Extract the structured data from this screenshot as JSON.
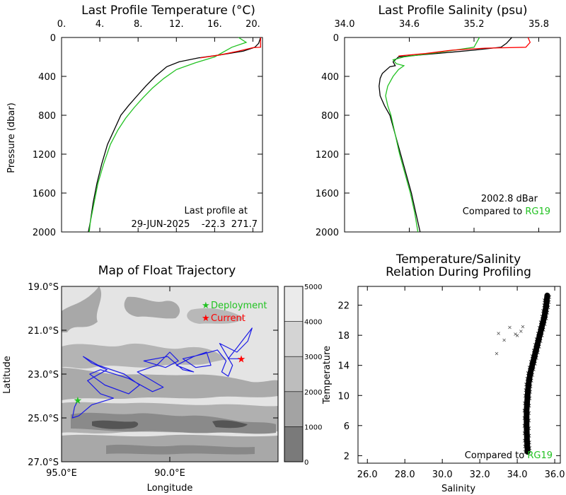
{
  "chart_data": [
    {
      "id": "temp-profile",
      "type": "line",
      "title": "Last Profile Temperature (°C)",
      "xlabel": "",
      "ylabel": "Pressure (dbar)",
      "xlim": [
        0,
        21
      ],
      "ylim": [
        2000,
        0
      ],
      "x_ticks": [
        0,
        4,
        8,
        12,
        16,
        20
      ],
      "x_tick_labels": [
        "0.",
        "4.",
        "8.",
        "12.",
        "16.",
        "20."
      ],
      "y_ticks": [
        0,
        400,
        800,
        1200,
        1600,
        2000
      ],
      "annotation_lines": [
        "Last profile at",
        "29-JUN-2025    -22.3  271.7"
      ],
      "series": [
        {
          "color": "#000000",
          "points": [
            [
              20.8,
              0
            ],
            [
              20.6,
              60
            ],
            [
              20.2,
              100
            ],
            [
              19.0,
              140
            ],
            [
              16.5,
              180
            ],
            [
              14.3,
              210
            ],
            [
              12.3,
              250
            ],
            [
              11.0,
              300
            ],
            [
              9.8,
              400
            ],
            [
              8.8,
              500
            ],
            [
              7.9,
              600
            ],
            [
              7.0,
              700
            ],
            [
              6.2,
              800
            ],
            [
              5.5,
              950
            ],
            [
              4.8,
              1100
            ],
            [
              4.2,
              1300
            ],
            [
              3.7,
              1500
            ],
            [
              3.3,
              1700
            ],
            [
              3.0,
              1900
            ],
            [
              2.8,
              2000
            ]
          ]
        },
        {
          "color": "#22c222",
          "points": [
            [
              18.5,
              0
            ],
            [
              19.3,
              50
            ],
            [
              17.8,
              100
            ],
            [
              16.0,
              200
            ],
            [
              14.0,
              260
            ],
            [
              12.0,
              330
            ],
            [
              10.7,
              420
            ],
            [
              9.5,
              520
            ],
            [
              8.5,
              620
            ],
            [
              7.6,
              720
            ],
            [
              6.7,
              830
            ],
            [
              5.9,
              950
            ],
            [
              5.1,
              1100
            ],
            [
              4.4,
              1300
            ],
            [
              3.8,
              1500
            ],
            [
              3.4,
              1700
            ],
            [
              3.0,
              1900
            ],
            [
              2.9,
              2000
            ]
          ]
        },
        {
          "color": "#ff0000",
          "points": [
            [
              20.8,
              0
            ],
            [
              20.8,
              100
            ],
            [
              20.0,
              105
            ],
            [
              18.5,
              140
            ],
            [
              16.5,
              180
            ],
            [
              14.5,
              210
            ]
          ]
        }
      ]
    },
    {
      "id": "salinity-profile",
      "type": "line",
      "title": "Last Profile Salinity (psu)",
      "xlim": [
        34.0,
        36.0
      ],
      "ylim": [
        2000,
        0
      ],
      "x_ticks": [
        34.0,
        34.6,
        35.2,
        35.8
      ],
      "x_tick_labels": [
        "34.0",
        "34.6",
        "35.2",
        "35.8"
      ],
      "y_ticks": [
        0,
        400,
        800,
        1200,
        1600,
        2000
      ],
      "annotation_lines": [
        "2002.8 dBar",
        "Compared to "
      ],
      "annotation_highlight": "RG19",
      "series": [
        {
          "color": "#000000",
          "points": [
            [
              35.55,
              0
            ],
            [
              35.5,
              60
            ],
            [
              35.45,
              100
            ],
            [
              35.2,
              130
            ],
            [
              34.8,
              170
            ],
            [
              34.5,
              200
            ],
            [
              34.45,
              250
            ],
            [
              34.47,
              290
            ],
            [
              34.42,
              300
            ],
            [
              34.35,
              370
            ],
            [
              34.33,
              420
            ],
            [
              34.32,
              500
            ],
            [
              34.33,
              600
            ],
            [
              34.37,
              700
            ],
            [
              34.42,
              800
            ],
            [
              34.47,
              1000
            ],
            [
              34.52,
              1200
            ],
            [
              34.57,
              1400
            ],
            [
              34.62,
              1600
            ],
            [
              34.66,
              1800
            ],
            [
              34.7,
              2000
            ]
          ]
        },
        {
          "color": "#22c222",
          "points": [
            [
              35.25,
              0
            ],
            [
              35.2,
              100
            ],
            [
              34.9,
              150
            ],
            [
              34.55,
              200
            ],
            [
              34.45,
              230
            ],
            [
              34.48,
              270
            ],
            [
              34.55,
              290
            ],
            [
              34.5,
              330
            ],
            [
              34.45,
              400
            ],
            [
              34.4,
              500
            ],
            [
              34.38,
              600
            ],
            [
              34.4,
              700
            ],
            [
              34.43,
              800
            ],
            [
              34.47,
              1000
            ],
            [
              34.51,
              1200
            ],
            [
              34.56,
              1400
            ],
            [
              34.61,
              1600
            ],
            [
              34.65,
              1800
            ],
            [
              34.68,
              2000
            ]
          ]
        },
        {
          "color": "#ff0000",
          "points": [
            [
              35.7,
              0
            ],
            [
              35.72,
              50
            ],
            [
              35.68,
              100
            ],
            [
              35.3,
              110
            ],
            [
              35.0,
              130
            ],
            [
              34.75,
              165
            ],
            [
              34.5,
              190
            ]
          ]
        }
      ]
    },
    {
      "id": "trajectory-map",
      "type": "map",
      "title": "Map of Float Trajectory",
      "xlabel": "Longitude",
      "ylabel": "Latitude",
      "lon_range": [
        95.0,
        85.0
      ],
      "lat_range": [
        -19.0,
        -27.0
      ],
      "x_ticks": [
        95,
        90
      ],
      "x_tick_labels": [
        "95.0°E",
        "90.0°E"
      ],
      "y_ticks": [
        -19,
        -21,
        -23,
        -25,
        -27
      ],
      "y_tick_labels": [
        "19.0°S",
        "21.0°S",
        "23.0°S",
        "25.0°S",
        "27.0°S"
      ],
      "legend": [
        {
          "label": "Deployment",
          "color": "#22c222",
          "marker": "star"
        },
        {
          "label": "Current",
          "color": "#ff0000",
          "marker": "star"
        }
      ],
      "colorbar_ticks": [
        5000,
        4000,
        3000,
        2000,
        1000,
        0
      ],
      "deployment": [
        94.25,
        -24.2
      ],
      "current": [
        86.7,
        -22.3
      ],
      "track_color": "#1a1ae6",
      "track": [
        [
          94.25,
          -24.2
        ],
        [
          94.4,
          -24.5
        ],
        [
          94.5,
          -25.0
        ],
        [
          94.2,
          -24.9
        ],
        [
          93.6,
          -24.4
        ],
        [
          92.6,
          -24.1
        ],
        [
          93.2,
          -23.9
        ],
        [
          93.8,
          -23.3
        ],
        [
          92.9,
          -22.8
        ],
        [
          93.6,
          -22.5
        ],
        [
          94.0,
          -22.2
        ],
        [
          93.3,
          -22.6
        ],
        [
          92.1,
          -23.0
        ],
        [
          91.4,
          -23.5
        ],
        [
          91.9,
          -23.9
        ],
        [
          93.0,
          -23.5
        ],
        [
          93.7,
          -23.0
        ],
        [
          93.2,
          -22.8
        ],
        [
          91.9,
          -23.2
        ],
        [
          90.8,
          -23.8
        ],
        [
          90.3,
          -23.6
        ],
        [
          91.5,
          -22.9
        ],
        [
          90.6,
          -22.6
        ],
        [
          90.0,
          -22.0
        ],
        [
          89.6,
          -22.4
        ],
        [
          90.2,
          -22.7
        ],
        [
          91.2,
          -22.4
        ],
        [
          90.1,
          -22.2
        ],
        [
          89.4,
          -22.8
        ],
        [
          88.9,
          -22.9
        ],
        [
          89.7,
          -22.6
        ],
        [
          88.9,
          -22.2
        ],
        [
          88.3,
          -22.0
        ],
        [
          88.1,
          -22.6
        ],
        [
          88.8,
          -22.7
        ],
        [
          89.4,
          -22.3
        ],
        [
          88.5,
          -22.1
        ],
        [
          87.8,
          -21.9
        ],
        [
          87.4,
          -22.4
        ],
        [
          87.6,
          -22.9
        ],
        [
          87.3,
          -23.1
        ],
        [
          87.1,
          -22.6
        ],
        [
          87.7,
          -21.6
        ],
        [
          86.9,
          -22.0
        ],
        [
          86.4,
          -21.5
        ],
        [
          86.2,
          -20.9
        ],
        [
          86.9,
          -21.8
        ],
        [
          87.3,
          -22.3
        ],
        [
          86.7,
          -22.3
        ]
      ]
    },
    {
      "id": "ts-relation",
      "type": "scatter",
      "title": "Temperature/Salinity Relation During Profiling",
      "title_lines": [
        "Temperature/Salinity",
        "Relation During Profiling"
      ],
      "xlabel": "Salinity",
      "ylabel": "Temperature",
      "xlim": [
        25.5,
        36.3
      ],
      "ylim": [
        1,
        24.5
      ],
      "x_ticks": [
        26.0,
        28.0,
        30.0,
        32.0,
        34.0,
        36.0
      ],
      "x_tick_labels": [
        "26.0",
        "28.0",
        "30.0",
        "32.0",
        "34.0",
        "36.0"
      ],
      "y_ticks": [
        2,
        6,
        10,
        14,
        18,
        22
      ],
      "annotation_text": "Compared to ",
      "annotation_highlight": "RG19",
      "point_color": "#000000",
      "curve": [
        [
          34.55,
          2.5
        ],
        [
          34.52,
          4
        ],
        [
          34.5,
          6
        ],
        [
          34.5,
          8
        ],
        [
          34.55,
          10
        ],
        [
          34.6,
          11.5
        ],
        [
          34.7,
          13
        ],
        [
          34.85,
          14.5
        ],
        [
          35.0,
          16
        ],
        [
          35.15,
          17.5
        ],
        [
          35.3,
          19
        ],
        [
          35.45,
          20.5
        ],
        [
          35.55,
          22
        ],
        [
          35.6,
          23.3
        ]
      ],
      "outliers": [
        [
          33.0,
          18.3
        ],
        [
          33.3,
          17.4
        ],
        [
          33.9,
          18.2
        ],
        [
          34.2,
          18.6
        ],
        [
          33.6,
          19.1
        ],
        [
          32.9,
          15.6
        ],
        [
          34.0,
          18.0
        ],
        [
          34.3,
          19.2
        ]
      ]
    }
  ]
}
